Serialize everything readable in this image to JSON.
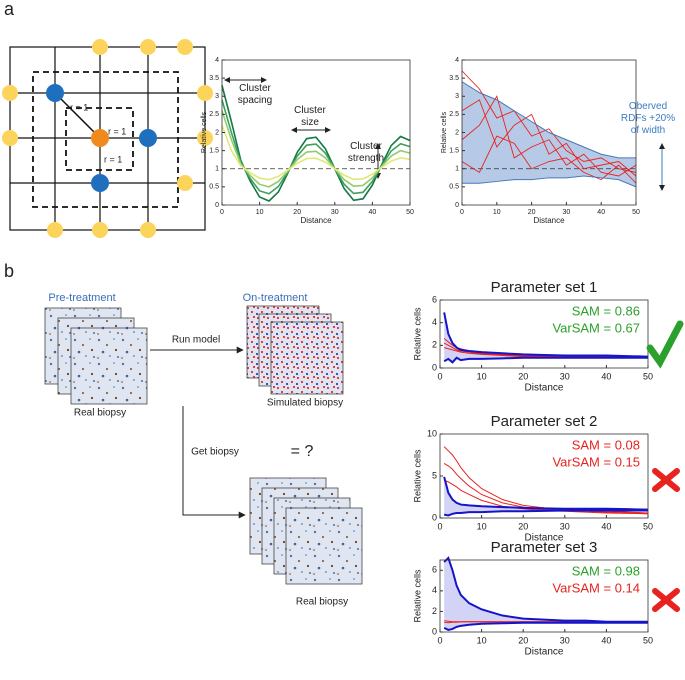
{
  "panel_labels": [
    "a",
    "b"
  ],
  "lattice": {
    "labels": [
      "r = 1",
      "r = 1",
      "r = 1"
    ]
  },
  "workflow": {
    "pre_label": "Pre-treatment",
    "pre_caption": "Real biopsy",
    "run_model": "Run model",
    "on_label": "On-treatment",
    "on_caption": "Simulated biopsy",
    "get_biopsy": "Get biopsy",
    "compare": "= ?",
    "real_caption": "Real biopsy"
  },
  "chart_data": [
    {
      "type": "line",
      "xlabel": "Distance",
      "ylabel": "Relative cells",
      "x": [
        0,
        2.5,
        5,
        7.5,
        10,
        12.5,
        15,
        17.5,
        20,
        22.5,
        25,
        27.5,
        30,
        32.5,
        35,
        37.5,
        40,
        42.5,
        45,
        47.5,
        50
      ],
      "series": [
        {
          "color": "#137a45",
          "values": [
            3.3,
            2.3,
            1.23,
            0.66,
            0.22,
            0.11,
            0.36,
            0.88,
            1.45,
            1.83,
            1.87,
            1.55,
            1,
            0.45,
            0.13,
            0.17,
            0.55,
            1.12,
            1.64,
            1.89,
            1.78
          ]
        },
        {
          "color": "#3ea05a",
          "values": [
            2.9,
            2.0,
            1.18,
            0.73,
            0.39,
            0.31,
            0.51,
            0.91,
            1.35,
            1.65,
            1.68,
            1.43,
            1,
            0.57,
            0.32,
            0.35,
            0.65,
            1.09,
            1.49,
            1.69,
            1.61
          ]
        },
        {
          "color": "#92cc6e",
          "values": [
            2.6,
            1.8,
            1.13,
            0.81,
            0.57,
            0.5,
            0.65,
            0.93,
            1.25,
            1.46,
            1.48,
            1.3,
            1,
            0.7,
            0.52,
            0.54,
            0.75,
            1.07,
            1.35,
            1.5,
            1.43
          ]
        },
        {
          "color": "#e2e878",
          "values": [
            2.2,
            1.5,
            1.08,
            0.89,
            0.74,
            0.7,
            0.79,
            0.96,
            1.15,
            1.28,
            1.29,
            1.18,
            1,
            0.82,
            0.71,
            0.72,
            0.85,
            1.04,
            1.21,
            1.3,
            1.26
          ]
        }
      ],
      "xlim": [
        0,
        50
      ],
      "ylim": [
        0,
        4
      ],
      "xticks": [
        0,
        10,
        20,
        30,
        40,
        50
      ],
      "yticks": [
        0,
        0.5,
        1,
        1.5,
        2,
        2.5,
        3,
        3.5,
        4
      ],
      "reference_line": 1,
      "annotations": [
        [
          "Cluster",
          "spacing"
        ],
        [
          "Cluster",
          "size"
        ],
        [
          "Cluster",
          "strength"
        ]
      ]
    },
    {
      "type": "line",
      "xlabel": "Distance",
      "ylabel": "Relative cells",
      "x": [
        0,
        5,
        10,
        15,
        20,
        25,
        30,
        35,
        40,
        45,
        50
      ],
      "band": {
        "fill": "#9db8df",
        "edge": "#4a78b5",
        "upper": [
          3.4,
          3.1,
          2.9,
          2.6,
          2.3,
          2.0,
          1.8,
          1.6,
          1.4,
          1.3,
          1.3
        ],
        "lower": [
          0.6,
          0.6,
          0.65,
          0.7,
          0.7,
          0.75,
          0.75,
          0.8,
          0.75,
          0.7,
          0.5
        ]
      },
      "series": [
        {
          "color": "#e8231f",
          "values": [
            3.7,
            3.2,
            2.4,
            2.6,
            1.9,
            2.1,
            1.5,
            1.2,
            1.3,
            1.0,
            0.9
          ]
        },
        {
          "color": "#e8231f",
          "values": [
            2.6,
            2.9,
            1.6,
            2.2,
            2.5,
            1.4,
            1.7,
            1.0,
            1.1,
            1.2,
            0.8
          ]
        },
        {
          "color": "#e8231f",
          "values": [
            1.8,
            2.2,
            3.0,
            1.3,
            1.6,
            1.8,
            1.1,
            1.4,
            0.9,
            0.8,
            1.1
          ]
        },
        {
          "color": "#e8231f",
          "values": [
            1.2,
            0.9,
            1.9,
            1.7,
            1.0,
            1.2,
            1.3,
            0.9,
            0.7,
            1.1,
            0.6
          ]
        }
      ],
      "xlim": [
        0,
        50
      ],
      "ylim": [
        0,
        4
      ],
      "xticks": [
        0,
        10,
        20,
        30,
        40,
        50
      ],
      "yticks": [
        0,
        0.5,
        1,
        1.5,
        2,
        2.5,
        3,
        3.5,
        4
      ],
      "reference_line": 1,
      "annotations": [
        [
          "Oberved",
          "RDFs +20%",
          "of width"
        ]
      ]
    },
    {
      "type": "line",
      "title": "Parameter set 1",
      "xlabel": "Distance",
      "ylabel": "Relative cells",
      "x": [
        1,
        2,
        3,
        4,
        5,
        7,
        10,
        15,
        20,
        25,
        30,
        35,
        40,
        45,
        50
      ],
      "band": {
        "fill": "#c4c4f2",
        "edge": "#1414c8",
        "upper": [
          4.9,
          3.0,
          2.2,
          1.8,
          1.6,
          1.5,
          1.4,
          1.3,
          1.2,
          1.15,
          1.1,
          1.1,
          1.1,
          1.05,
          1.0
        ],
        "lower": [
          0.6,
          0.8,
          0.5,
          0.9,
          0.7,
          0.8,
          0.8,
          0.85,
          0.9,
          0.9,
          0.9,
          0.9,
          0.9,
          0.9,
          0.9
        ]
      },
      "series": [
        {
          "color": "#e8231f",
          "values": [
            2.6,
            2.3,
            2.0,
            1.8,
            1.7,
            1.5,
            1.3,
            1.2,
            1.1,
            1.05,
            1,
            1,
            1,
            1,
            1
          ]
        },
        {
          "color": "#e8231f",
          "values": [
            2.2,
            2.0,
            1.8,
            1.6,
            1.5,
            1.4,
            1.25,
            1.15,
            1.05,
            1,
            1,
            0.95,
            0.95,
            0.95,
            0.95
          ]
        },
        {
          "color": "#e8231f",
          "values": [
            1.8,
            1.7,
            1.6,
            1.5,
            1.4,
            1.3,
            1.2,
            1.1,
            1.0,
            1.0,
            0.95,
            0.95,
            0.9,
            0.9,
            0.9
          ]
        }
      ],
      "xlim": [
        0,
        50
      ],
      "ylim": [
        0,
        6
      ],
      "xticks": [
        0,
        10,
        20,
        30,
        40,
        50
      ],
      "yticks": [
        0,
        2,
        4,
        6
      ],
      "metrics": [
        {
          "text": "SAM = 0.86",
          "color": "#2ca02c"
        },
        {
          "text": "VarSAM = 0.67",
          "color": "#2ca02c"
        }
      ],
      "verdict": "check"
    },
    {
      "type": "line",
      "title": "Parameter set 2",
      "xlabel": "Distance",
      "ylabel": "Relative cells",
      "x": [
        1,
        2,
        3,
        4,
        5,
        7,
        10,
        15,
        20,
        25,
        30,
        35,
        40,
        45,
        50
      ],
      "band": {
        "fill": "#c4c4f2",
        "edge": "#1414c8",
        "upper": [
          4.9,
          3.0,
          2.2,
          1.8,
          1.6,
          1.5,
          1.4,
          1.3,
          1.2,
          1.15,
          1.1,
          1.1,
          1.1,
          1.05,
          1.0
        ],
        "lower": [
          0.4,
          0.3,
          0.5,
          0.6,
          0.6,
          0.7,
          0.7,
          0.8,
          0.8,
          0.85,
          0.9,
          0.9,
          0.9,
          0.9,
          0.9
        ]
      },
      "series": [
        {
          "color": "#e8231f",
          "values": [
            8.5,
            8.0,
            7.5,
            6.8,
            6.0,
            4.8,
            3.5,
            2.2,
            1.5,
            1.2,
            1.0,
            0.9,
            0.8,
            0.7,
            0.6
          ]
        },
        {
          "color": "#e8231f",
          "values": [
            6.5,
            6.2,
            5.8,
            5.2,
            4.7,
            3.8,
            2.8,
            1.8,
            1.3,
            1.0,
            0.9,
            0.8,
            0.7,
            0.6,
            0.5
          ]
        },
        {
          "color": "#e8231f",
          "values": [
            4.5,
            4.3,
            4.0,
            3.7,
            3.3,
            2.8,
            2.1,
            1.4,
            1.1,
            0.9,
            0.8,
            0.7,
            0.6,
            0.55,
            0.5
          ]
        }
      ],
      "xlim": [
        0,
        50
      ],
      "ylim": [
        0,
        10
      ],
      "xticks": [
        0,
        10,
        20,
        30,
        40,
        50
      ],
      "yticks": [
        0,
        5,
        10
      ],
      "metrics": [
        {
          "text": "SAM = 0.08",
          "color": "#e8231f"
        },
        {
          "text": "VarSAM = 0.15",
          "color": "#e8231f"
        }
      ],
      "verdict": "cross"
    },
    {
      "type": "line",
      "title": "Parameter set 3",
      "xlabel": "Distance",
      "ylabel": "Relative cells",
      "x": [
        1,
        2,
        3,
        4,
        5,
        7,
        10,
        15,
        20,
        25,
        30,
        35,
        40,
        45,
        50
      ],
      "band": {
        "fill": "#c4c4f2",
        "edge": "#1414c8",
        "upper": [
          6.8,
          7.2,
          6.0,
          4.5,
          3.6,
          2.8,
          2.2,
          1.6,
          1.3,
          1.2,
          1.1,
          1.1,
          1.0,
          1.0,
          1.0
        ],
        "lower": [
          0.4,
          0.2,
          0.3,
          0.5,
          0.6,
          0.7,
          0.8,
          0.85,
          0.9,
          0.9,
          0.9,
          0.9,
          0.9,
          0.9,
          0.9
        ]
      },
      "series": [
        {
          "color": "#e8231f",
          "values": [
            1.1,
            1.05,
            1.0,
            1.0,
            1.0,
            1.0,
            1.0,
            1.0,
            1.0,
            1.0,
            1.0,
            1.0,
            1.0,
            1.0,
            1.0
          ]
        },
        {
          "color": "#e8231f",
          "values": [
            0.95,
            0.9,
            0.95,
            0.95,
            1,
            1,
            1,
            1,
            1,
            1,
            1,
            1,
            1,
            1,
            1
          ]
        }
      ],
      "xlim": [
        0,
        50
      ],
      "ylim": [
        0,
        7
      ],
      "xticks": [
        0,
        10,
        20,
        30,
        40,
        50
      ],
      "yticks": [
        0,
        2,
        4,
        6
      ],
      "metrics": [
        {
          "text": "SAM = 0.98",
          "color": "#2ca02c"
        },
        {
          "text": "VarSAM = 0.14",
          "color": "#e8231f"
        }
      ],
      "verdict": "cross"
    }
  ]
}
